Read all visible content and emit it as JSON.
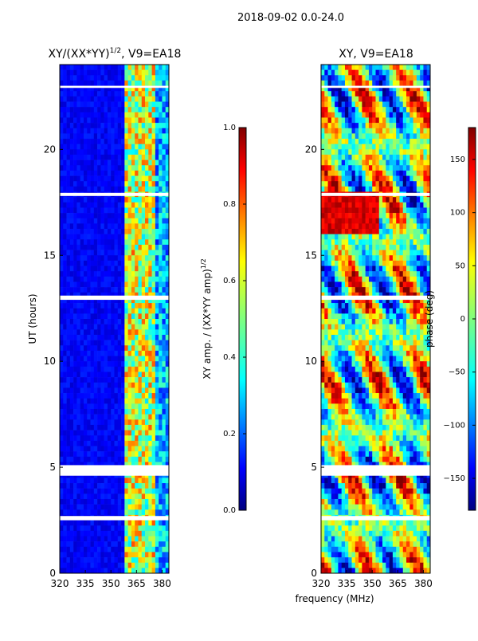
{
  "suptitle": "2018-09-02 0.0-24.0",
  "xlabel_shared": "frequency (MHz)",
  "chart_data": [
    {
      "type": "heatmap",
      "title": "XY/(XX*YY)",
      "title_exp": "1/2",
      "title_suffix": ", V9=EA18",
      "ylabel": "UT (hours)",
      "xlim": [
        320,
        384
      ],
      "ylim": [
        0,
        24
      ],
      "xticks": [
        320,
        335,
        350,
        365,
        380
      ],
      "yticks": [
        0,
        5,
        10,
        15,
        20
      ],
      "colormap": "jet",
      "blank_rows_hours": [
        [
          4.6,
          5.1
        ],
        [
          2.5,
          2.7
        ],
        [
          12.9,
          13.1
        ],
        [
          17.8,
          17.95
        ],
        [
          22.9,
          23.0
        ]
      ]
    },
    {
      "type": "colorbar",
      "label": "XY amp. / (XX*YY amp)",
      "label_exp": "1/2",
      "range": [
        0.0,
        1.0
      ],
      "ticks": [
        "0.0",
        "0.2",
        "0.4",
        "0.6",
        "0.8",
        "1.0"
      ],
      "tick_values": [
        0.0,
        0.2,
        0.4,
        0.6,
        0.8,
        1.0
      ]
    },
    {
      "type": "heatmap",
      "title": "XY, V9=EA18",
      "xlim": [
        320,
        384
      ],
      "ylim": [
        0,
        24
      ],
      "xticks": [
        320,
        335,
        350,
        365,
        380
      ],
      "yticks": [
        0,
        5,
        10,
        15,
        20
      ],
      "colormap": "jet",
      "blank_rows_hours": [
        [
          4.6,
          5.1
        ],
        [
          2.5,
          2.7
        ],
        [
          12.9,
          13.1
        ],
        [
          17.8,
          17.95
        ],
        [
          22.9,
          23.0
        ]
      ]
    },
    {
      "type": "colorbar",
      "label": "phase (deg)",
      "range": [
        -180,
        180
      ],
      "ticks": [
        "150",
        "100",
        "50",
        "0",
        "−50",
        "−100",
        "−150"
      ],
      "tick_values": [
        150,
        100,
        50,
        0,
        -50,
        -100,
        -150
      ]
    }
  ],
  "colors": {
    "jet0": "#00007f",
    "jet1": "#0000ff",
    "jet2": "#007fff",
    "jet3": "#00ffff",
    "jet4": "#7fff7f",
    "jet5": "#ffff00",
    "jet6": "#ff7f00",
    "jet7": "#ff0000",
    "jet8": "#7f0000"
  }
}
